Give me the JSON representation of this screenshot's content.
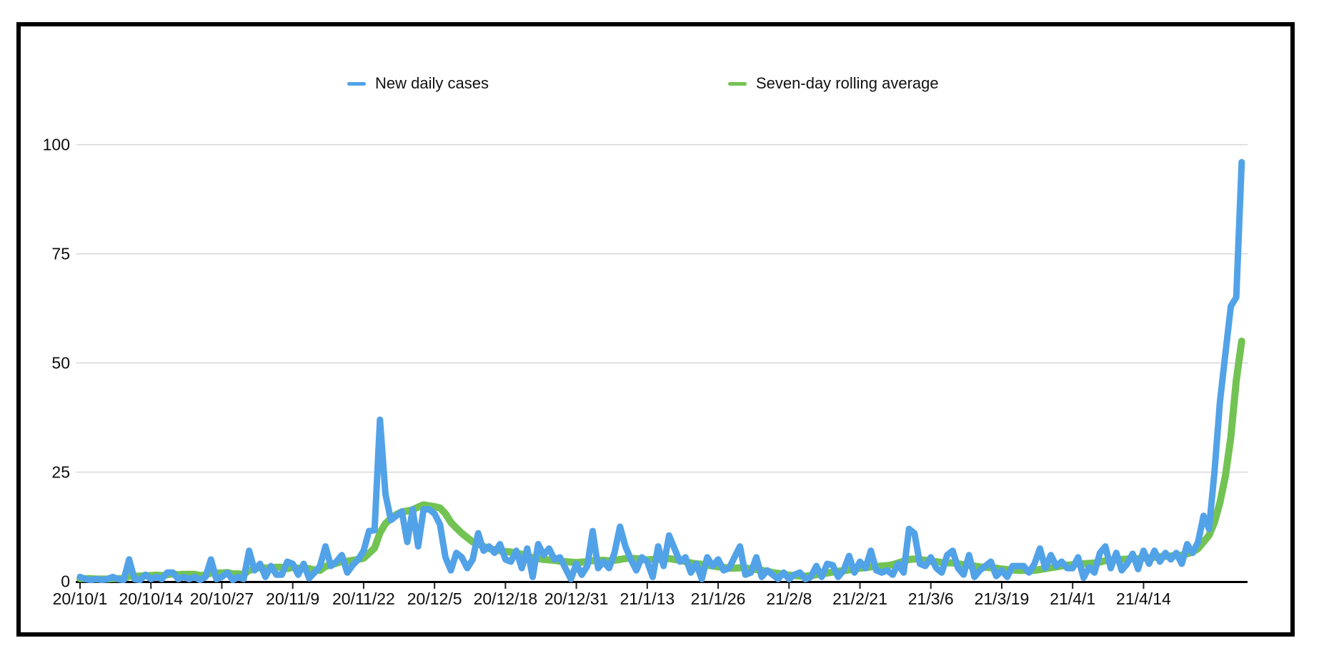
{
  "chart_data": {
    "type": "line",
    "title": "",
    "xlabel": "",
    "ylabel": "",
    "x_unit": "day",
    "x_start_label": "20/10/1",
    "y_ticks": [
      0,
      25,
      50,
      75,
      100
    ],
    "ylim": [
      0,
      100
    ],
    "grid": "horizontal",
    "legend_position": "top",
    "x_tick_labels": [
      "20/10/1",
      "20/10/14",
      "20/10/27",
      "20/11/9",
      "20/11/22",
      "20/12/5",
      "20/12/18",
      "20/12/31",
      "21/1/13",
      "21/1/26",
      "21/2/8",
      "21/2/21",
      "21/3/6",
      "21/3/19",
      "21/4/1",
      "21/4/14"
    ],
    "x_tick_day_index": [
      0,
      13,
      26,
      39,
      52,
      65,
      78,
      91,
      104,
      117,
      130,
      143,
      156,
      169,
      182,
      195
    ],
    "series": [
      {
        "name": "New daily cases",
        "color": "#52a2e8",
        "values": [
          1,
          0.5,
          0.3,
          0.5,
          0.3,
          0.5,
          1,
          0.5,
          0.3,
          5,
          0.5,
          0.3,
          1.5,
          0.5,
          1,
          0.5,
          2,
          2,
          0.5,
          1,
          0.5,
          1,
          0.3,
          1,
          5,
          0.5,
          1,
          2,
          0.3,
          1,
          0.5,
          7,
          2.5,
          4,
          1,
          3.5,
          1.5,
          1.5,
          4.5,
          4,
          1.5,
          4,
          0.7,
          2,
          3.5,
          8,
          3.5,
          4.5,
          6,
          2,
          3.7,
          5,
          7,
          11.5,
          11.7,
          37,
          20,
          14,
          15,
          16,
          9,
          16.5,
          8,
          16.5,
          16.5,
          15.5,
          13,
          5.5,
          2.5,
          6.5,
          5.5,
          3,
          5,
          11,
          7,
          8,
          6.5,
          8.5,
          5,
          4.5,
          7,
          3,
          7.5,
          1,
          8.5,
          6,
          7.5,
          5,
          5.5,
          3,
          0.5,
          4,
          1.5,
          3.5,
          11.5,
          3,
          4.5,
          3,
          6.5,
          12.5,
          8,
          5,
          2.5,
          5.5,
          4.5,
          1,
          8,
          3.5,
          10.5,
          7.5,
          4.5,
          5.5,
          2,
          4,
          0.5,
          5.5,
          3.5,
          5,
          2.5,
          3,
          5.5,
          8,
          1.5,
          2,
          5.5,
          1,
          2.5,
          1.5,
          0.5,
          2,
          0.5,
          1.5,
          2,
          0.5,
          1,
          3.5,
          1,
          4,
          3.7,
          1,
          2.5,
          5.8,
          2,
          4.5,
          3,
          7,
          2.5,
          2,
          2.5,
          1.5,
          4,
          2,
          12,
          11,
          4,
          3.5,
          5.5,
          3,
          2,
          6,
          7,
          3,
          1.5,
          6,
          1,
          2.5,
          3.5,
          4.5,
          1.2,
          2.5,
          1,
          3.5,
          3.5,
          3.5,
          2,
          4,
          7.5,
          3,
          6,
          3.5,
          4.5,
          3,
          3,
          5.5,
          0.8,
          3.2,
          2,
          6.5,
          8,
          3,
          6.5,
          2.5,
          4,
          6.3,
          2.8,
          7,
          4,
          7,
          4.5,
          6.5,
          5,
          6.5,
          4,
          8.5,
          6.5,
          9,
          15,
          12,
          25,
          41,
          52,
          63,
          65,
          96
        ]
      },
      {
        "name": "Seven-day rolling average",
        "color": "#72c353",
        "values": [
          0.6,
          0.6,
          0.6,
          0.5,
          0.5,
          0.5,
          0.6,
          0.6,
          0.6,
          1.2,
          1.2,
          1.2,
          1.3,
          1.3,
          1.4,
          1.3,
          1.5,
          1.7,
          1.5,
          1.6,
          1.6,
          1.6,
          1.3,
          1.4,
          1.9,
          1.9,
          1.9,
          2.0,
          1.7,
          1.7,
          1.6,
          2.5,
          2.8,
          3.2,
          3.0,
          3.1,
          3.2,
          3.2,
          2.9,
          3.2,
          3.0,
          3.0,
          2.9,
          2.6,
          2.5,
          3.4,
          3.8,
          4.1,
          4.6,
          4.6,
          4.8,
          5.0,
          5.3,
          6.4,
          7.6,
          11.1,
          13.2,
          14.4,
          15.3,
          15.9,
          16.1,
          16.4,
          17.0,
          17.5,
          17.3,
          17.1,
          16.8,
          15.5,
          13.5,
          12.2,
          11.0,
          10.0,
          9.0,
          8.5,
          8.0,
          7.5,
          7.2,
          7.0,
          6.8,
          6.7,
          6.4,
          6.2,
          5.8,
          5.4,
          5.2,
          5.0,
          4.9,
          4.8,
          4.6,
          4.5,
          4.4,
          4.3,
          4.4,
          4.5,
          4.7,
          4.8,
          4.8,
          4.7,
          4.8,
          5.0,
          5.2,
          5.3,
          5.2,
          5.0,
          4.9,
          5.0,
          5.0,
          5.1,
          5.2,
          5.0,
          4.8,
          4.5,
          4.2,
          4.0,
          3.9,
          3.7,
          3.5,
          3.3,
          3.2,
          3.0,
          3.0,
          3.1,
          3.0,
          2.9,
          2.7,
          2.5,
          2.3,
          2.0,
          1.8,
          1.6,
          1.4,
          1.3,
          1.2,
          1.2,
          1.3,
          1.5,
          1.7,
          1.9,
          2.1,
          2.3,
          2.4,
          2.6,
          2.8,
          3.0,
          3.1,
          3.3,
          3.4,
          3.5,
          3.6,
          3.8,
          4.2,
          4.6,
          5.0,
          5.1,
          5.0,
          4.8,
          4.6,
          4.5,
          4.3,
          4.2,
          4.2,
          4.0,
          3.8,
          3.7,
          3.5,
          3.3,
          3.2,
          3.1,
          3.0,
          2.8,
          2.7,
          2.6,
          2.5,
          2.5,
          2.4,
          2.5,
          2.7,
          2.9,
          3.1,
          3.3,
          3.5,
          3.7,
          3.8,
          4.0,
          4.0,
          4.1,
          4.2,
          4.4,
          4.7,
          4.8,
          5.0,
          5.0,
          5.1,
          5.2,
          5.2,
          5.3,
          5.4,
          5.5,
          5.6,
          5.7,
          5.8,
          5.9,
          6.0,
          6.3,
          6.7,
          7.5,
          9.0,
          10.5,
          13.5,
          18.0,
          24.0,
          33.0,
          46.0,
          55.0
        ]
      }
    ]
  }
}
